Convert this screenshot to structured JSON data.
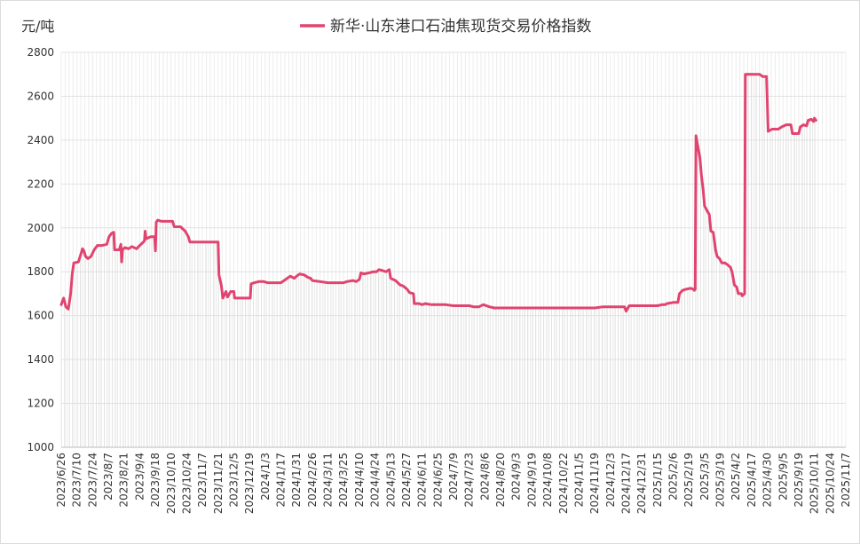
{
  "chart_data": {
    "type": "line",
    "title": "",
    "ylabel": "元/吨",
    "xlabel": "",
    "ylim": [
      1000,
      2800
    ],
    "yticks": [
      1000,
      1200,
      1400,
      1600,
      1800,
      2000,
      2200,
      2400,
      2600,
      2800
    ],
    "grid": true,
    "legend_position": "top-center",
    "x_tick_labels": [
      "2023/6/26",
      "2023/7/10",
      "2023/7/24",
      "2023/8/7",
      "2023/8/21",
      "2023/9/4",
      "2023/9/18",
      "2023/10/10",
      "2023/10/24",
      "2023/11/7",
      "2023/11/21",
      "2023/12/5",
      "2023/12/19",
      "2024/1/3",
      "2024/1/17",
      "2024/1/31",
      "2024/2/26",
      "2024/3/11",
      "2024/3/25",
      "2024/4/10",
      "2024/4/24",
      "2024/5/13",
      "2024/5/27",
      "2024/6/11",
      "2024/6/25",
      "2024/7/9",
      "2024/7/23",
      "2024/8/6",
      "2024/8/20",
      "2024/9/3",
      "2024/9/19",
      "2024/10/8",
      "2024/10/22",
      "2024/11/5",
      "2024/11/19",
      "2024/12/3",
      "2024/12/17",
      "2024/12/31",
      "2025/1/15",
      "2025/2/6",
      "2025/2/19",
      "2025/3/5",
      "2025/3/19",
      "2025/4/2",
      "2025/4/17",
      "2025/4/30",
      "2025/9/5",
      "2025/9/19",
      "2025/10/11",
      "2025/10/24",
      "2025/11/7"
    ],
    "series": [
      {
        "name": "新华·山东港口石油焦现货交易价格指数",
        "color": "#e0446f",
        "points": [
          [
            0,
            1650
          ],
          [
            0.15,
            1680
          ],
          [
            0.3,
            1640
          ],
          [
            0.45,
            1630
          ],
          [
            0.6,
            1700
          ],
          [
            0.7,
            1790
          ],
          [
            0.8,
            1840
          ],
          [
            1.1,
            1845
          ],
          [
            1.25,
            1880
          ],
          [
            1.35,
            1905
          ],
          [
            1.45,
            1895
          ],
          [
            1.55,
            1870
          ],
          [
            1.7,
            1860
          ],
          [
            1.9,
            1870
          ],
          [
            2.1,
            1900
          ],
          [
            2.3,
            1920
          ],
          [
            2.6,
            1920
          ],
          [
            2.9,
            1925
          ],
          [
            3.05,
            1960
          ],
          [
            3.2,
            1975
          ],
          [
            3.35,
            1980
          ],
          [
            3.4,
            1900
          ],
          [
            3.7,
            1900
          ],
          [
            3.8,
            1925
          ],
          [
            3.85,
            1845
          ],
          [
            3.9,
            1900
          ],
          [
            4.05,
            1910
          ],
          [
            4.3,
            1905
          ],
          [
            4.5,
            1915
          ],
          [
            4.8,
            1905
          ],
          [
            5.0,
            1920
          ],
          [
            5.3,
            1940
          ],
          [
            5.35,
            1985
          ],
          [
            5.4,
            1950
          ],
          [
            5.7,
            1960
          ],
          [
            5.95,
            1960
          ],
          [
            6.0,
            1895
          ],
          [
            6.05,
            2025
          ],
          [
            6.15,
            2035
          ],
          [
            6.4,
            2030
          ],
          [
            6.8,
            2030
          ],
          [
            7.1,
            2030
          ],
          [
            7.2,
            2005
          ],
          [
            7.6,
            2005
          ],
          [
            7.9,
            1985
          ],
          [
            8.1,
            1960
          ],
          [
            8.2,
            1935
          ],
          [
            8.6,
            1935
          ],
          [
            9.1,
            1935
          ],
          [
            9.7,
            1935
          ],
          [
            10.0,
            1935
          ],
          [
            10.05,
            1785
          ],
          [
            10.2,
            1740
          ],
          [
            10.3,
            1680
          ],
          [
            10.5,
            1710
          ],
          [
            10.6,
            1685
          ],
          [
            10.8,
            1710
          ],
          [
            11.0,
            1710
          ],
          [
            11.05,
            1680
          ],
          [
            11.4,
            1680
          ],
          [
            11.8,
            1680
          ],
          [
            12.05,
            1680
          ],
          [
            12.1,
            1745
          ],
          [
            12.3,
            1750
          ],
          [
            12.6,
            1755
          ],
          [
            12.9,
            1755
          ],
          [
            13.15,
            1750
          ],
          [
            13.6,
            1750
          ],
          [
            14.0,
            1750
          ],
          [
            14.2,
            1760
          ],
          [
            14.4,
            1770
          ],
          [
            14.6,
            1780
          ],
          [
            14.85,
            1770
          ],
          [
            15.0,
            1780
          ],
          [
            15.2,
            1790
          ],
          [
            15.5,
            1785
          ],
          [
            15.7,
            1775
          ],
          [
            15.9,
            1770
          ],
          [
            16.0,
            1760
          ],
          [
            16.5,
            1755
          ],
          [
            17.0,
            1750
          ],
          [
            17.6,
            1750
          ],
          [
            18.0,
            1750
          ],
          [
            18.2,
            1755
          ],
          [
            18.6,
            1760
          ],
          [
            18.8,
            1755
          ],
          [
            19.0,
            1765
          ],
          [
            19.1,
            1795
          ],
          [
            19.3,
            1790
          ],
          [
            19.6,
            1795
          ],
          [
            19.9,
            1800
          ],
          [
            20.1,
            1800
          ],
          [
            20.25,
            1810
          ],
          [
            20.5,
            1805
          ],
          [
            20.7,
            1800
          ],
          [
            20.9,
            1810
          ],
          [
            21.0,
            1770
          ],
          [
            21.3,
            1760
          ],
          [
            21.6,
            1740
          ],
          [
            21.8,
            1735
          ],
          [
            22.05,
            1720
          ],
          [
            22.2,
            1705
          ],
          [
            22.45,
            1700
          ],
          [
            22.5,
            1655
          ],
          [
            22.8,
            1655
          ],
          [
            23.0,
            1650
          ],
          [
            23.2,
            1655
          ],
          [
            23.6,
            1650
          ],
          [
            24.0,
            1650
          ],
          [
            24.5,
            1650
          ],
          [
            25.0,
            1645
          ],
          [
            25.5,
            1645
          ],
          [
            26.0,
            1645
          ],
          [
            26.3,
            1640
          ],
          [
            26.6,
            1640
          ],
          [
            26.9,
            1650
          ],
          [
            27.3,
            1640
          ],
          [
            27.6,
            1635
          ],
          [
            28.0,
            1635
          ],
          [
            28.5,
            1635
          ],
          [
            29.0,
            1635
          ],
          [
            29.5,
            1635
          ],
          [
            30.0,
            1635
          ],
          [
            30.5,
            1635
          ],
          [
            31.0,
            1635
          ],
          [
            31.5,
            1635
          ],
          [
            32.0,
            1635
          ],
          [
            32.5,
            1635
          ],
          [
            33.0,
            1635
          ],
          [
            33.5,
            1635
          ],
          [
            34.0,
            1635
          ],
          [
            34.5,
            1640
          ],
          [
            35.0,
            1640
          ],
          [
            35.5,
            1640
          ],
          [
            35.9,
            1640
          ],
          [
            36.0,
            1620
          ],
          [
            36.2,
            1645
          ],
          [
            36.6,
            1645
          ],
          [
            37.0,
            1645
          ],
          [
            37.5,
            1645
          ],
          [
            38.0,
            1645
          ],
          [
            38.3,
            1650
          ],
          [
            38.5,
            1650
          ],
          [
            38.6,
            1655
          ],
          [
            39.0,
            1660
          ],
          [
            39.3,
            1660
          ],
          [
            39.4,
            1700
          ],
          [
            39.6,
            1715
          ],
          [
            39.8,
            1720
          ],
          [
            40.1,
            1725
          ],
          [
            40.3,
            1720
          ],
          [
            40.35,
            1715
          ],
          [
            40.4,
            1720
          ],
          [
            40.45,
            2420
          ],
          [
            40.55,
            2380
          ],
          [
            40.7,
            2320
          ],
          [
            40.8,
            2240
          ],
          [
            40.9,
            2180
          ],
          [
            41.0,
            2100
          ],
          [
            41.15,
            2080
          ],
          [
            41.3,
            2060
          ],
          [
            41.4,
            1985
          ],
          [
            41.55,
            1980
          ],
          [
            41.7,
            1900
          ],
          [
            41.8,
            1870
          ],
          [
            41.95,
            1860
          ],
          [
            42.1,
            1840
          ],
          [
            42.3,
            1840
          ],
          [
            42.5,
            1830
          ],
          [
            42.65,
            1820
          ],
          [
            42.75,
            1800
          ],
          [
            42.9,
            1740
          ],
          [
            43.05,
            1730
          ],
          [
            43.15,
            1700
          ],
          [
            43.35,
            1700
          ],
          [
            43.4,
            1690
          ],
          [
            43.55,
            1700
          ],
          [
            43.6,
            2700
          ],
          [
            44.0,
            2700
          ],
          [
            44.5,
            2700
          ],
          [
            44.7,
            2690
          ],
          [
            44.95,
            2690
          ],
          [
            45.05,
            2440
          ],
          [
            45.3,
            2450
          ],
          [
            45.7,
            2450
          ],
          [
            45.9,
            2460
          ],
          [
            46.2,
            2470
          ],
          [
            46.5,
            2470
          ],
          [
            46.6,
            2430
          ],
          [
            46.9,
            2430
          ],
          [
            47.0,
            2430
          ],
          [
            47.1,
            2460
          ],
          [
            47.3,
            2470
          ],
          [
            47.5,
            2465
          ],
          [
            47.6,
            2490
          ],
          [
            47.8,
            2495
          ],
          [
            47.95,
            2485
          ],
          [
            48.0,
            2500
          ],
          [
            48.1,
            2490
          ]
        ]
      }
    ]
  }
}
